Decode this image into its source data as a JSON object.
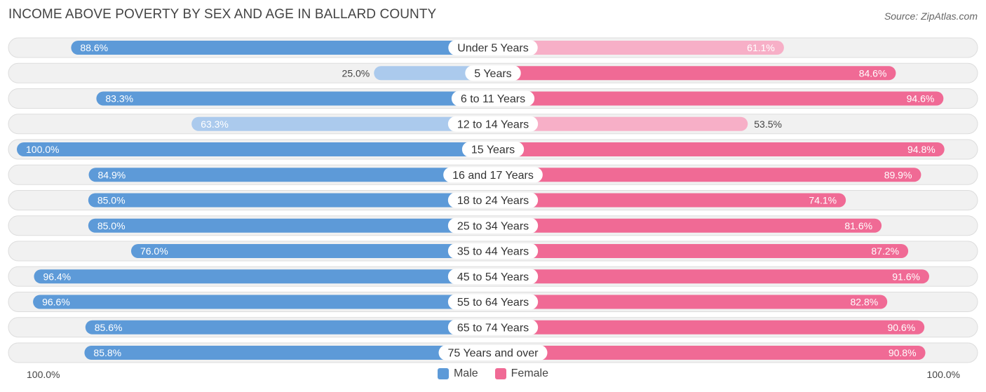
{
  "title": "INCOME ABOVE POVERTY BY SEX AND AGE IN BALLARD COUNTY",
  "source": "Source: ZipAtlas.com",
  "axis": {
    "left_label": "100.0%",
    "right_label": "100.0%"
  },
  "legend": [
    {
      "label": "Male",
      "color": "#5d9ad8"
    },
    {
      "label": "Female",
      "color": "#f06a95"
    }
  ],
  "colors": {
    "male_strong": "#5d9ad8",
    "male_light": "#abcaed",
    "female_strong": "#f06a95",
    "female_light": "#f7afc7",
    "row_bg": "#f1f1f1",
    "row_border": "#dddddd"
  },
  "chart_data": {
    "type": "bar",
    "orientation": "horizontal-diverging",
    "title": "INCOME ABOVE POVERTY BY SEX AND AGE IN BALLARD COUNTY",
    "xlim": [
      -100,
      100
    ],
    "categories": [
      "Under 5 Years",
      "5 Years",
      "6 to 11 Years",
      "12 to 14 Years",
      "15 Years",
      "16 and 17 Years",
      "18 to 24 Years",
      "25 to 34 Years",
      "35 to 44 Years",
      "45 to 54 Years",
      "55 to 64 Years",
      "65 to 74 Years",
      "75 Years and over"
    ],
    "series": [
      {
        "name": "Male",
        "values": [
          88.6,
          25.0,
          83.3,
          63.3,
          100.0,
          84.9,
          85.0,
          85.0,
          76.0,
          96.4,
          96.6,
          85.6,
          85.8
        ],
        "labels": [
          "88.6%",
          "25.0%",
          "83.3%",
          "63.3%",
          "100.0%",
          "84.9%",
          "85.0%",
          "85.0%",
          "76.0%",
          "96.4%",
          "96.6%",
          "85.6%",
          "85.8%"
        ]
      },
      {
        "name": "Female",
        "values": [
          61.1,
          84.6,
          94.6,
          53.5,
          94.8,
          89.9,
          74.1,
          81.6,
          87.2,
          91.6,
          82.8,
          90.6,
          90.8
        ],
        "labels": [
          "61.1%",
          "84.6%",
          "94.6%",
          "53.5%",
          "94.8%",
          "89.9%",
          "74.1%",
          "81.6%",
          "87.2%",
          "91.6%",
          "82.8%",
          "90.6%",
          "90.8%"
        ]
      }
    ]
  }
}
